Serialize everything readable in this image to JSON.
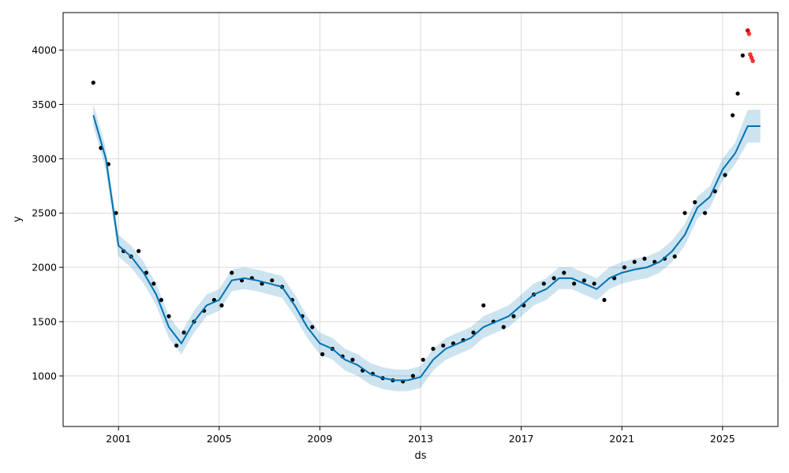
{
  "chart_data": {
    "type": "line",
    "title": "",
    "xlabel": "ds",
    "ylabel": "y",
    "xlim": [
      1998.8,
      2027.2
    ],
    "ylim": [
      535,
      4345
    ],
    "grid": true,
    "x_ticks": [
      2001,
      2005,
      2009,
      2013,
      2017,
      2021,
      2025
    ],
    "y_ticks": [
      1000,
      1500,
      2000,
      2500,
      3000,
      3500,
      4000
    ],
    "colors": {
      "forecast": "#0072B2",
      "interval": "#9ecae1",
      "observed": "#000000",
      "recent": "#ff0000"
    },
    "series": [
      {
        "role": "observed",
        "x": [
          2000.0,
          2000.3,
          2000.6,
          2000.9,
          2001.2,
          2001.5,
          2001.8,
          2002.1,
          2002.4,
          2002.7,
          2003.0,
          2003.3,
          2003.6,
          2004.0,
          2004.4,
          2004.8,
          2005.1,
          2005.5,
          2005.9,
          2006.3,
          2006.7,
          2007.1,
          2007.5,
          2007.9,
          2008.3,
          2008.7,
          2009.1,
          2009.5,
          2009.9,
          2010.3,
          2010.7,
          2011.1,
          2011.5,
          2011.9,
          2012.3,
          2012.7,
          2013.1,
          2013.5,
          2013.9,
          2014.3,
          2014.7,
          2015.1,
          2015.5,
          2015.9,
          2016.3,
          2016.7,
          2017.1,
          2017.5,
          2017.9,
          2018.3,
          2018.7,
          2019.1,
          2019.5,
          2019.9,
          2020.3,
          2020.7,
          2021.1,
          2021.5,
          2021.9,
          2022.3,
          2022.7,
          2023.1,
          2023.5,
          2023.9,
          2024.3,
          2024.7,
          2025.1,
          2025.4,
          2025.6,
          2025.8,
          2026.0
        ],
        "y": [
          3700,
          3100,
          2950,
          2500,
          2150,
          2100,
          2150,
          1950,
          1850,
          1700,
          1550,
          1280,
          1400,
          1500,
          1600,
          1700,
          1650,
          1950,
          1880,
          1900,
          1850,
          1880,
          1820,
          1700,
          1550,
          1450,
          1200,
          1250,
          1180,
          1150,
          1050,
          1020,
          980,
          960,
          950,
          1000,
          1150,
          1250,
          1280,
          1300,
          1330,
          1400,
          1650,
          1500,
          1450,
          1550,
          1650,
          1750,
          1850,
          1900,
          1950,
          1850,
          1880,
          1850,
          1700,
          1900,
          2000,
          2050,
          2080,
          2050,
          2080,
          2100,
          2500,
          2600,
          2500,
          2700,
          2850,
          3400,
          3600,
          3950,
          4180
        ]
      },
      {
        "role": "forecast",
        "x": [
          2000.0,
          2000.5,
          2001.0,
          2001.5,
          2002.0,
          2002.5,
          2003.0,
          2003.5,
          2004.0,
          2004.5,
          2005.0,
          2005.5,
          2006.0,
          2006.5,
          2007.0,
          2007.5,
          2008.0,
          2008.5,
          2009.0,
          2009.5,
          2010.0,
          2010.5,
          2011.0,
          2011.5,
          2012.0,
          2012.5,
          2013.0,
          2013.5,
          2014.0,
          2014.5,
          2015.0,
          2015.5,
          2016.0,
          2016.5,
          2017.0,
          2017.5,
          2018.0,
          2018.5,
          2019.0,
          2019.5,
          2020.0,
          2020.5,
          2021.0,
          2021.5,
          2022.0,
          2022.5,
          2023.0,
          2023.5,
          2024.0,
          2024.5,
          2025.0,
          2025.5,
          2026.0,
          2026.5
        ],
        "y": [
          3400,
          3000,
          2200,
          2100,
          1950,
          1750,
          1450,
          1300,
          1500,
          1650,
          1700,
          1880,
          1900,
          1880,
          1850,
          1820,
          1650,
          1450,
          1300,
          1250,
          1150,
          1100,
          1020,
          980,
          960,
          960,
          990,
          1150,
          1250,
          1300,
          1350,
          1450,
          1500,
          1550,
          1650,
          1750,
          1800,
          1900,
          1900,
          1850,
          1800,
          1900,
          1950,
          1980,
          2000,
          2050,
          2150,
          2300,
          2550,
          2650,
          2900,
          3050,
          3300,
          3300
        ]
      },
      {
        "role": "interval",
        "x": [
          2000.0,
          2000.5,
          2001.0,
          2001.5,
          2002.0,
          2002.5,
          2003.0,
          2003.5,
          2004.0,
          2004.5,
          2005.0,
          2005.5,
          2006.0,
          2006.5,
          2007.0,
          2007.5,
          2008.0,
          2008.5,
          2009.0,
          2009.5,
          2010.0,
          2010.5,
          2011.0,
          2011.5,
          2012.0,
          2012.5,
          2013.0,
          2013.5,
          2014.0,
          2014.5,
          2015.0,
          2015.5,
          2016.0,
          2016.5,
          2017.0,
          2017.5,
          2018.0,
          2018.5,
          2019.0,
          2019.5,
          2020.0,
          2020.5,
          2021.0,
          2021.5,
          2022.0,
          2022.5,
          2023.0,
          2023.5,
          2024.0,
          2024.5,
          2025.0,
          2025.5,
          2026.0,
          2026.5
        ],
        "lower": [
          3300,
          2900,
          2100,
          2000,
          1850,
          1650,
          1350,
          1200,
          1400,
          1550,
          1600,
          1780,
          1800,
          1780,
          1750,
          1720,
          1550,
          1350,
          1200,
          1150,
          1050,
          1000,
          920,
          880,
          860,
          860,
          890,
          1050,
          1150,
          1200,
          1250,
          1350,
          1400,
          1450,
          1550,
          1650,
          1700,
          1800,
          1800,
          1750,
          1700,
          1800,
          1850,
          1880,
          1900,
          1950,
          2050,
          2200,
          2450,
          2550,
          2800,
          2950,
          3150,
          3150
        ],
        "upper": [
          3500,
          3100,
          2300,
          2200,
          2050,
          1850,
          1550,
          1400,
          1600,
          1750,
          1800,
          1980,
          2000,
          1980,
          1950,
          1920,
          1750,
          1550,
          1400,
          1350,
          1250,
          1200,
          1120,
          1080,
          1060,
          1060,
          1090,
          1250,
          1350,
          1400,
          1450,
          1550,
          1600,
          1650,
          1750,
          1850,
          1900,
          2000,
          2000,
          1950,
          1900,
          2000,
          2050,
          2080,
          2100,
          2150,
          2250,
          2400,
          2650,
          2750,
          3000,
          3150,
          3450,
          3450
        ]
      },
      {
        "role": "recent",
        "x": [
          2026.0,
          2026.05,
          2026.1,
          2026.15,
          2026.2
        ],
        "y": [
          4180,
          4150,
          3960,
          3930,
          3900
        ]
      }
    ]
  }
}
